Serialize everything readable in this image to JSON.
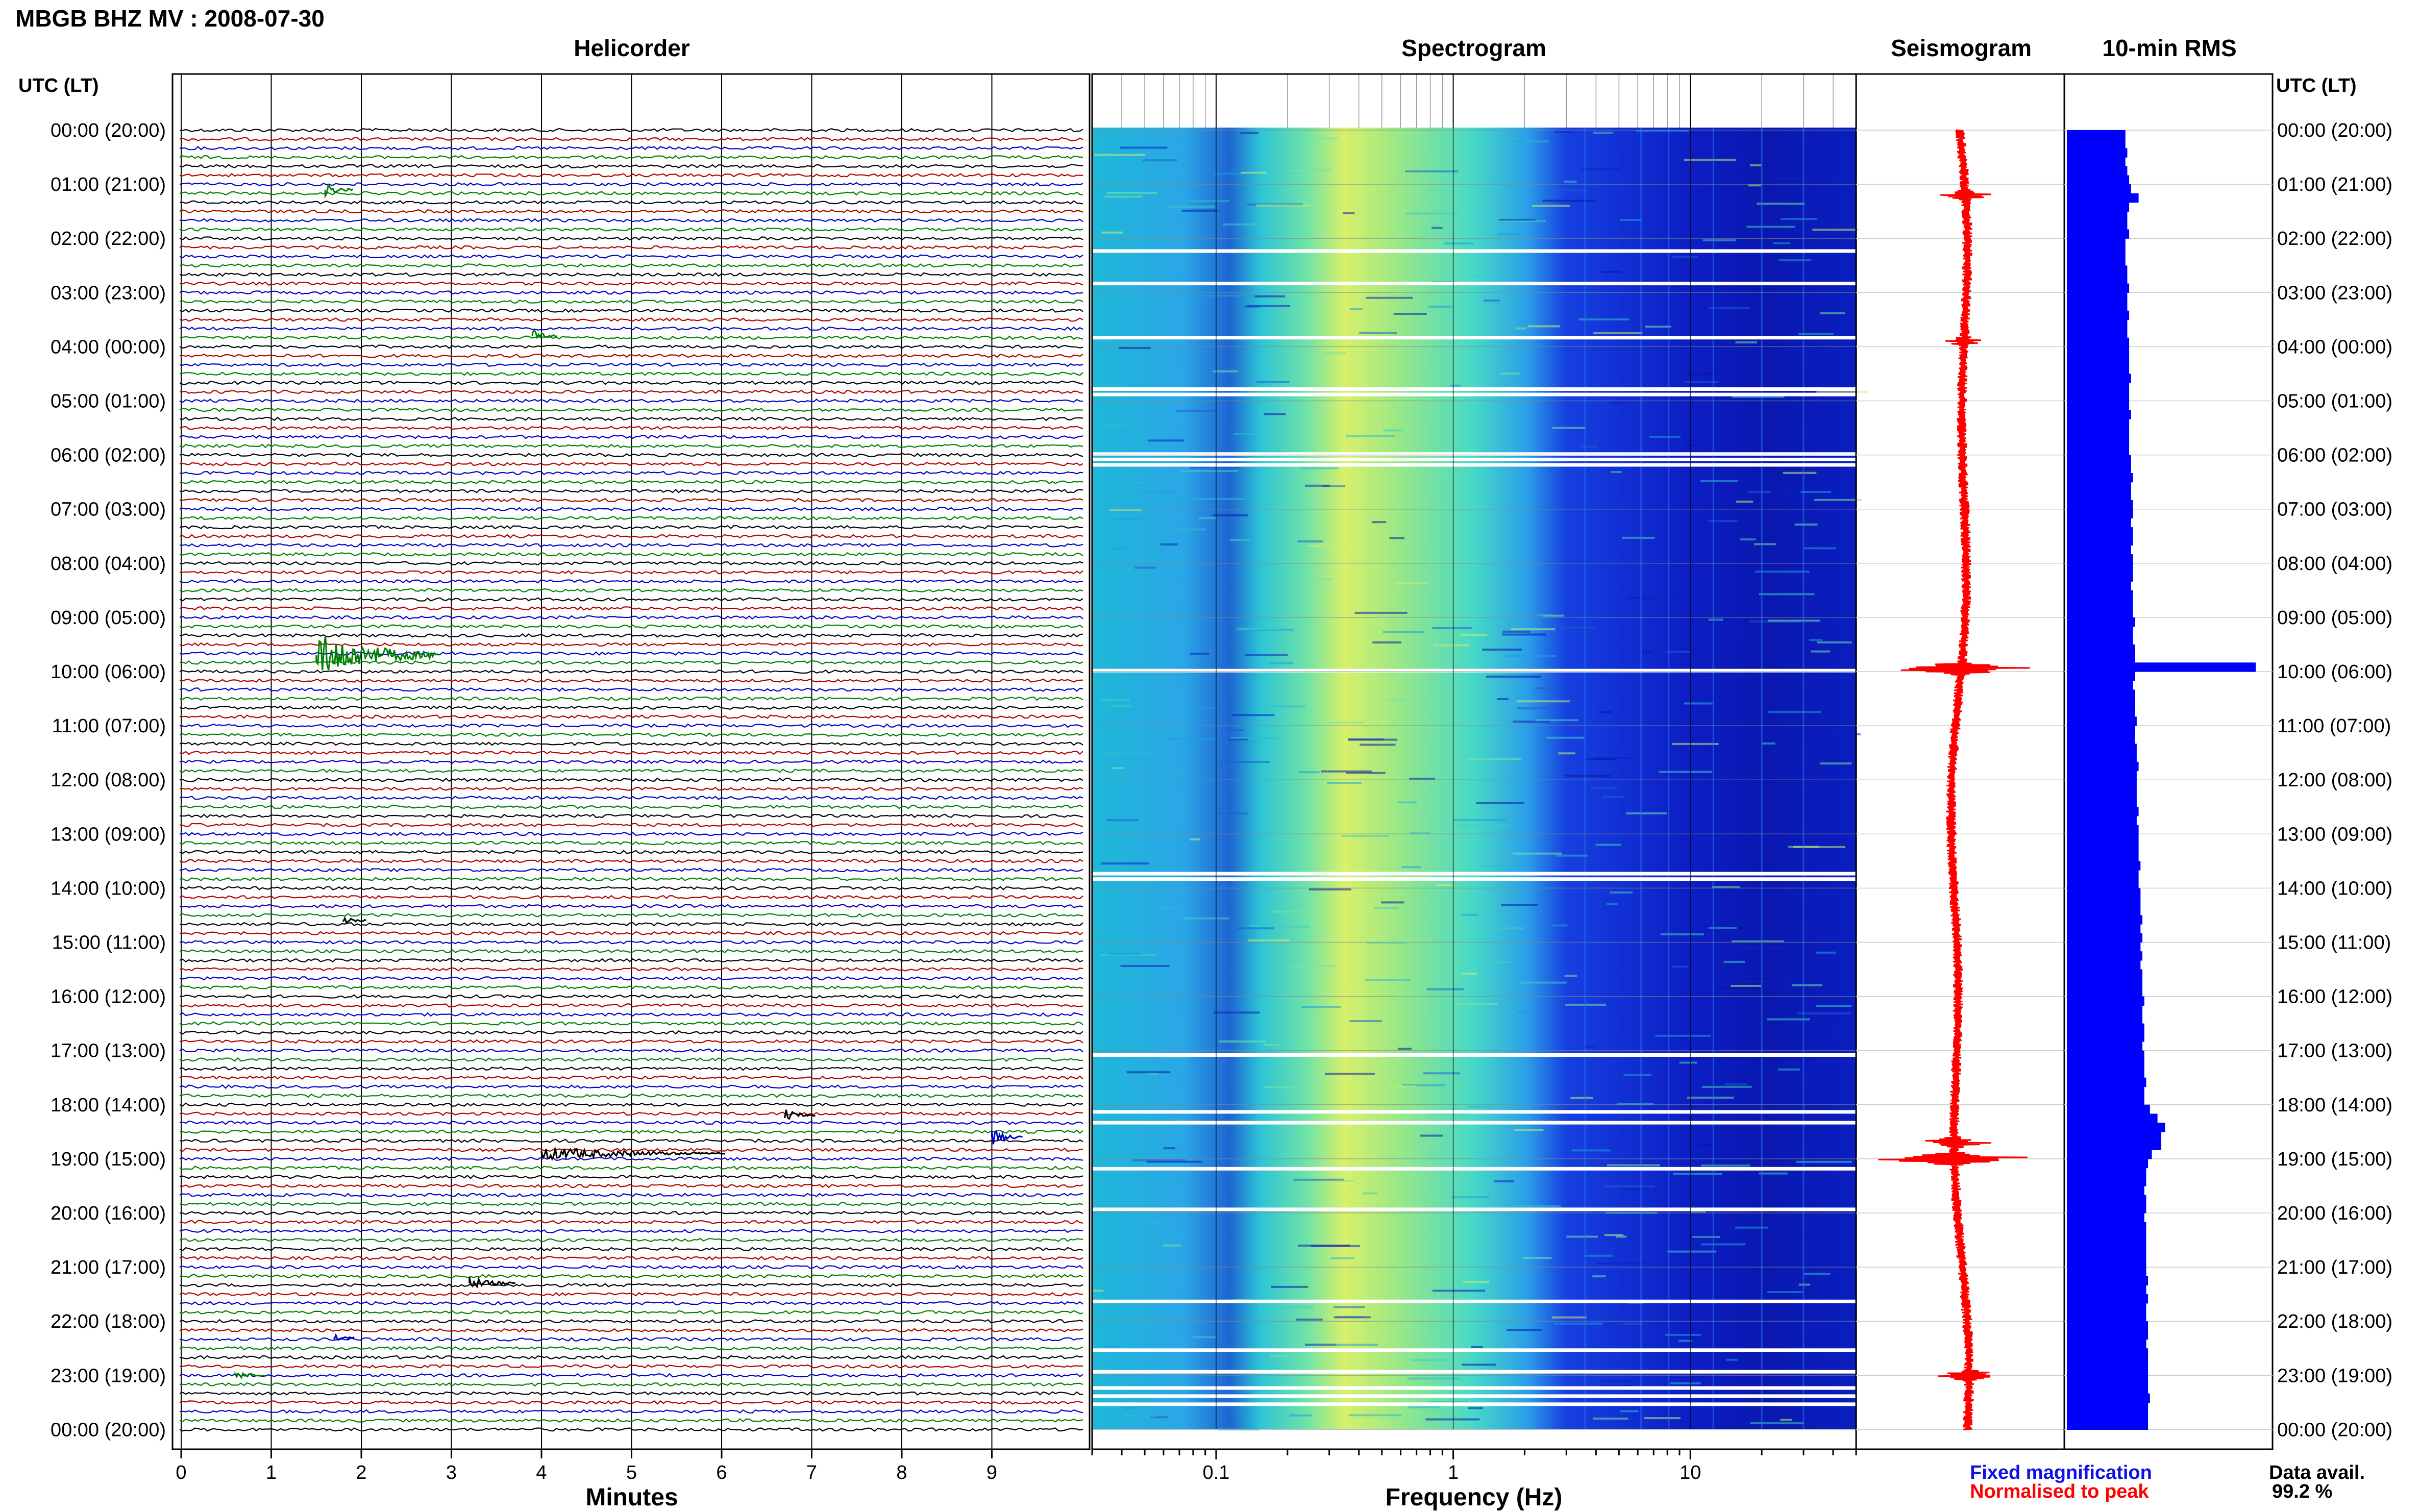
{
  "header": {
    "title": "MBGB BHZ MV : 2008-07-30",
    "left_axis_label": "UTC (LT)",
    "right_axis_label": "UTC (LT)"
  },
  "panels": {
    "helicorder": "Helicorder",
    "spectrogram": "Spectrogram",
    "seismogram": "Seismogram",
    "rms": "10-min RMS"
  },
  "legend": {
    "fixed": "Fixed magnification",
    "normalised": "Normalised to peak",
    "fixed_color": "#1010e6",
    "normalised_color": "#ff0000"
  },
  "data_availability": {
    "label": "Data avail.",
    "value": "99.2 %"
  },
  "chart_data": [
    {
      "type": "line",
      "panel": "Helicorder",
      "xlabel": "Minutes",
      "x_ticks": [
        "0",
        "1",
        "2",
        "3",
        "4",
        "5",
        "6",
        "7",
        "8",
        "9"
      ],
      "xlim": [
        0,
        10
      ],
      "ylabel": "UTC (LT)",
      "y_ticks": [
        "00:00 (20:00)",
        "01:00 (21:00)",
        "02:00 (22:00)",
        "03:00 (23:00)",
        "04:00 (00:00)",
        "05:00 (01:00)",
        "06:00 (02:00)",
        "07:00 (03:00)",
        "08:00 (04:00)",
        "09:00 (05:00)",
        "10:00 (06:00)",
        "11:00 (07:00)",
        "12:00 (08:00)",
        "13:00 (09:00)",
        "14:00 (10:00)",
        "15:00 (11:00)",
        "16:00 (12:00)",
        "17:00 (13:00)",
        "18:00 (14:00)",
        "19:00 (15:00)",
        "20:00 (16:00)",
        "21:00 (17:00)",
        "22:00 (18:00)",
        "23:00 (19:00)",
        "00:00 (20:00)"
      ],
      "line_colors": [
        "#000000",
        "#b00000",
        "#0000c8",
        "#008000"
      ],
      "events_hours": [
        1.1,
        3.8,
        9.7,
        14.6,
        18.2,
        18.6,
        18.9,
        21.3,
        22.3,
        23.0
      ]
    },
    {
      "type": "heatmap",
      "panel": "Spectrogram",
      "xlabel": "Frequency (Hz)",
      "x_scale": "log",
      "x_ticks": [
        "0.1",
        "1",
        "10"
      ],
      "xlim": [
        0.03,
        50
      ]
    },
    {
      "type": "line",
      "panel": "Seismogram",
      "color": "#ff0000"
    },
    {
      "type": "bar",
      "panel": "10-min RMS",
      "color": "#0000ff",
      "orientation": "horizontal",
      "values": [
        0.31,
        0.31,
        0.32,
        0.31,
        0.32,
        0.33,
        0.34,
        0.38,
        0.33,
        0.32,
        0.32,
        0.33,
        0.31,
        0.31,
        0.31,
        0.32,
        0.32,
        0.33,
        0.32,
        0.32,
        0.33,
        0.32,
        0.32,
        0.33,
        0.33,
        0.33,
        0.33,
        0.34,
        0.33,
        0.33,
        0.33,
        0.34,
        0.33,
        0.33,
        0.33,
        0.33,
        0.34,
        0.34,
        0.35,
        0.34,
        0.34,
        0.35,
        0.35,
        0.34,
        0.35,
        0.35,
        0.34,
        0.35,
        0.35,
        0.35,
        0.34,
        0.35,
        0.35,
        0.35,
        0.36,
        0.35,
        0.35,
        0.36,
        0.36,
        1.0,
        0.36,
        0.35,
        0.36,
        0.36,
        0.36,
        0.37,
        0.36,
        0.36,
        0.37,
        0.37,
        0.38,
        0.37,
        0.37,
        0.37,
        0.37,
        0.38,
        0.37,
        0.38,
        0.38,
        0.38,
        0.38,
        0.39,
        0.38,
        0.38,
        0.39,
        0.39,
        0.39,
        0.4,
        0.39,
        0.4,
        0.39,
        0.4,
        0.39,
        0.4,
        0.4,
        0.4,
        0.41,
        0.4,
        0.4,
        0.41,
        0.41,
        0.4,
        0.41,
        0.41,
        0.41,
        0.42,
        0.41,
        0.41,
        0.44,
        0.48,
        0.52,
        0.5,
        0.5,
        0.45,
        0.43,
        0.42,
        0.42,
        0.41,
        0.42,
        0.42,
        0.41,
        0.42,
        0.42,
        0.42,
        0.42,
        0.42,
        0.42,
        0.43,
        0.42,
        0.43,
        0.42,
        0.42,
        0.43,
        0.43,
        0.42,
        0.43,
        0.43,
        0.43,
        0.43,
        0.43,
        0.44,
        0.43,
        0.43,
        0.43
      ]
    }
  ]
}
